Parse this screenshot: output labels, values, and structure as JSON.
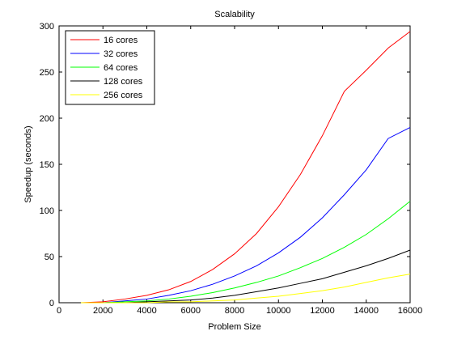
{
  "chart_data": {
    "type": "line",
    "title": "Scalability",
    "xlabel": "Problem Size",
    "ylabel": "Speedup (seconds)",
    "xlim": [
      0,
      16000
    ],
    "ylim": [
      0,
      300
    ],
    "x_ticks": [
      0,
      2000,
      4000,
      6000,
      8000,
      10000,
      12000,
      14000,
      16000
    ],
    "y_ticks": [
      0,
      50,
      100,
      150,
      200,
      250,
      300
    ],
    "grid": false,
    "legend_position": "top-left",
    "x": [
      1000,
      2000,
      3000,
      4000,
      5000,
      6000,
      7000,
      8000,
      9000,
      10000,
      11000,
      12000,
      13000,
      14000,
      15000,
      16000
    ],
    "series": [
      {
        "name": "16 cores",
        "color": "#ff0000",
        "values": [
          0,
          1,
          4,
          8,
          14,
          23,
          36,
          53,
          75,
          104,
          139,
          181,
          229,
          252,
          276,
          294
        ]
      },
      {
        "name": "32 cores",
        "color": "#0000ff",
        "values": [
          0,
          0,
          2,
          4,
          8,
          13,
          20,
          29,
          40,
          54,
          71,
          92,
          117,
          144,
          178,
          190
        ]
      },
      {
        "name": "64 cores",
        "color": "#00ff00",
        "values": [
          0,
          0,
          1,
          2,
          4,
          7,
          11,
          16,
          22,
          29,
          38,
          48,
          60,
          74,
          91,
          110
        ]
      },
      {
        "name": "128 cores",
        "color": "#000000",
        "values": [
          0,
          0,
          0,
          1,
          2,
          3,
          5,
          8,
          12,
          16,
          21,
          26,
          33,
          40,
          48,
          57
        ]
      },
      {
        "name": "256 cores",
        "color": "#ffff00",
        "values": [
          0,
          0,
          0,
          0,
          1,
          1,
          2,
          3,
          5,
          7,
          10,
          13,
          17,
          22,
          27,
          31
        ]
      }
    ]
  }
}
